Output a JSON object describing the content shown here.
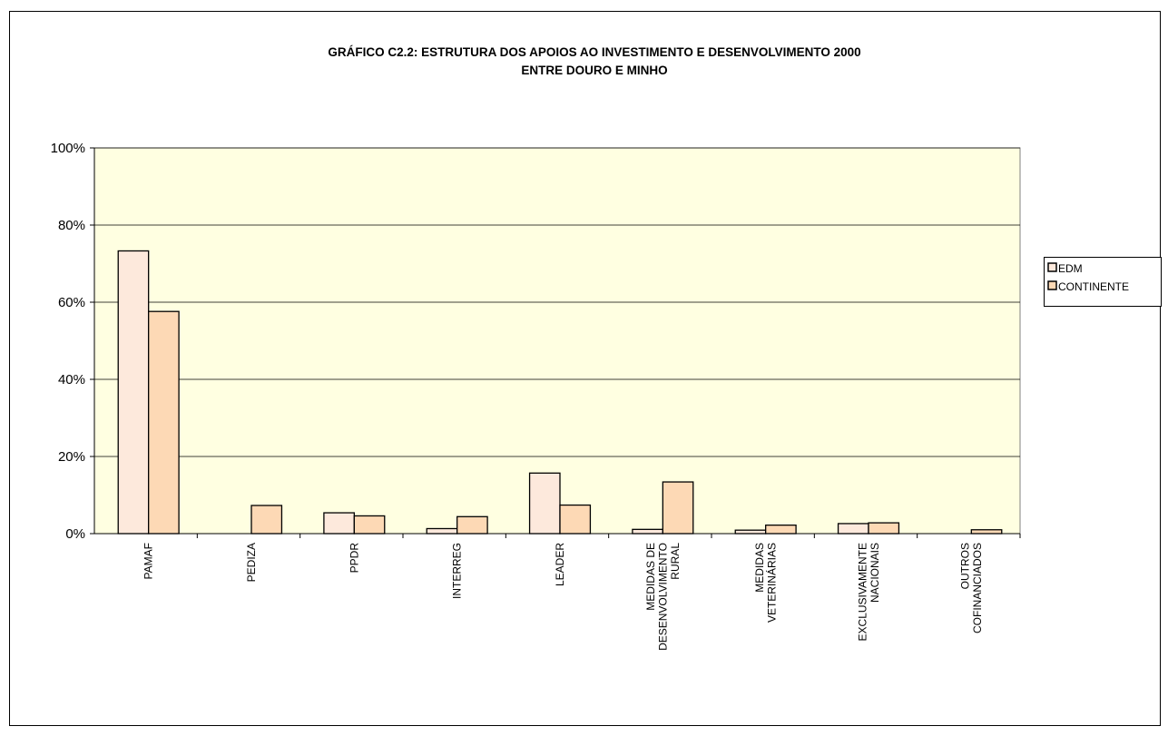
{
  "chart_data": {
    "type": "bar",
    "title": [
      "GRÁFICO C2.2: ESTRUTURA DOS APOIOS AO INVESTIMENTO E DESENVOLVIMENTO 2000",
      "ENTRE DOURO E MINHO"
    ],
    "categories": [
      "PAMAF",
      "PEDIZA",
      "PPDR",
      "INTERREG",
      "LEADER",
      "MEDIDAS DE DESENVOLVIMENTO RURAL",
      "MEDIDAS VETERINÁRIAS",
      "EXCLUSIVAMENTE NACIONAIS",
      "OUTROS COFINANCIADOS"
    ],
    "series": [
      {
        "name": "EDM",
        "color": "#fde9dc",
        "values": [
          73.3,
          0,
          5.4,
          1.3,
          15.7,
          1.1,
          0.9,
          2.6,
          0
        ]
      },
      {
        "name": "CONTINENTE",
        "color": "#fdd9b5",
        "values": [
          57.6,
          7.3,
          4.6,
          4.4,
          7.4,
          13.4,
          2.2,
          2.8,
          1.0
        ]
      }
    ],
    "ylim": [
      0,
      100
    ],
    "yticks": [
      {
        "value": 0,
        "label": "0%"
      },
      {
        "value": 20,
        "label": "20%"
      },
      {
        "value": 40,
        "label": "40%"
      },
      {
        "value": 60,
        "label": "60%"
      },
      {
        "value": 80,
        "label": "80%"
      },
      {
        "value": 100,
        "label": "100%"
      }
    ],
    "grid": true,
    "plot_background": "#ffffe1",
    "legend": "right"
  }
}
